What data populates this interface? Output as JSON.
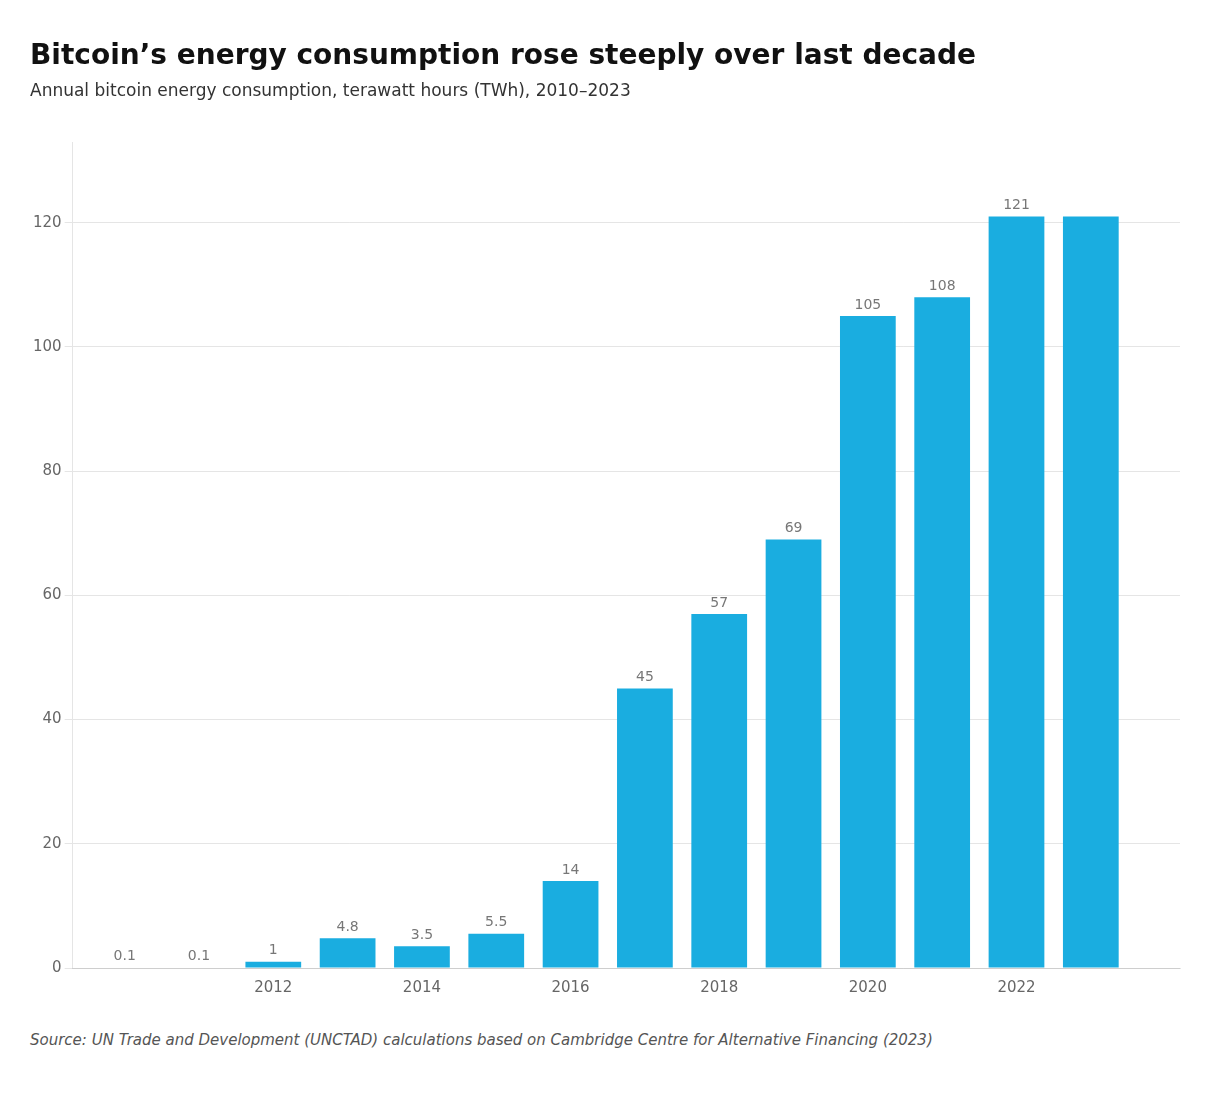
{
  "chart_data": {
    "type": "bar",
    "title": "Bitcoin’s energy consumption rose steeply over last decade",
    "subtitle": "Annual bitcoin energy consumption, terawatt hours (TWh), 2010–2023",
    "source": "Source: UN Trade and Development (UNCTAD) calculations based on Cambridge Centre for Alternative Financing (2023)",
    "x": [
      2010,
      2011,
      2012,
      2013,
      2014,
      2015,
      2016,
      2017,
      2018,
      2019,
      2020,
      2021,
      2022,
      2023
    ],
    "values": [
      0.1,
      0.1,
      1,
      4.8,
      3.5,
      5.5,
      14,
      45,
      57,
      69,
      105,
      108,
      121,
      121
    ],
    "value_labels": [
      "0.1",
      "0.1",
      "1",
      "4.8",
      "3.5",
      "5.5",
      "14",
      "45",
      "57",
      "69",
      "105",
      "108",
      "121",
      null
    ],
    "color": "#1AADE0",
    "xlim": [
      2009.3,
      2024.2
    ],
    "xticks": [
      2012,
      2014,
      2016,
      2018,
      2020,
      2022
    ],
    "ylim": [
      0,
      133
    ],
    "yticks": [
      0,
      20,
      40,
      60,
      80,
      100,
      120
    ],
    "grid": true
  }
}
